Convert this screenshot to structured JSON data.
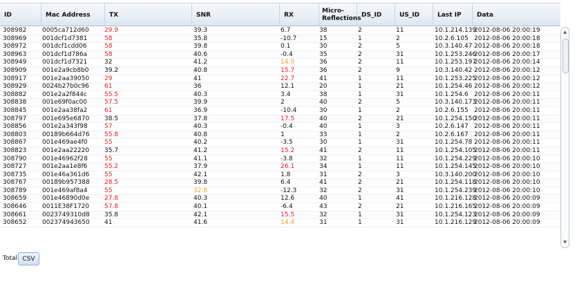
{
  "table": {
    "columns": [
      {
        "key": "id",
        "label": "ID"
      },
      {
        "key": "mac",
        "label": "Mac Address"
      },
      {
        "key": "tx",
        "label": "TX"
      },
      {
        "key": "snr",
        "label": "SNR"
      },
      {
        "key": "rx",
        "label": "RX"
      },
      {
        "key": "micro",
        "label": "Micro-\nReflections"
      },
      {
        "key": "ds",
        "label": "DS_ID"
      },
      {
        "key": "us",
        "label": "US_ID"
      },
      {
        "key": "ip",
        "label": "Last IP"
      },
      {
        "key": "data",
        "label": "Data"
      }
    ],
    "rows": [
      {
        "id": "308982",
        "mac": "0005ca712d60",
        "tx": "29.9",
        "snr": "39.3",
        "rx": "6.7",
        "micro": "38",
        "ds": "2",
        "us": "11",
        "ip": "10.1.214.139",
        "data": "2012-08-06 20:00:19",
        "tx_status": "red",
        "rx_status": ""
      },
      {
        "id": "308969",
        "mac": "001dcf1d7381",
        "tx": "58",
        "snr": "35.8",
        "rx": "-10.7",
        "micro": "15",
        "ds": "1",
        "us": "2",
        "ip": "10.2.6.105",
        "data": "2012-08-06 20:00:18",
        "tx_status": "red",
        "rx_status": ""
      },
      {
        "id": "308972",
        "mac": "001dcf1cdd06",
        "tx": "58",
        "snr": "39.8",
        "rx": "0.1",
        "micro": "30",
        "ds": "2",
        "us": "5",
        "ip": "10.3.140.47",
        "data": "2012-08-06 20:00:18",
        "tx_status": "red",
        "rx_status": ""
      },
      {
        "id": "308963",
        "mac": "001dcf1d786a",
        "tx": "58",
        "snr": "40.6",
        "rx": "-0.4",
        "micro": "35",
        "ds": "2",
        "us": "31",
        "ip": "10.1.253.246",
        "data": "2012-08-06 20:00:17",
        "tx_status": "red",
        "rx_status": ""
      },
      {
        "id": "308949",
        "mac": "001dcf1d7321",
        "tx": "32",
        "snr": "41.2",
        "rx": "14.9",
        "micro": "36",
        "ds": "2",
        "us": "11",
        "ip": "10.1.253.197",
        "data": "2012-08-06 20:00:14",
        "tx_status": "",
        "rx_status": "orange"
      },
      {
        "id": "308909",
        "mac": "001e2a9cb8b0",
        "tx": "39.2",
        "snr": "40.8",
        "rx": "15.7",
        "micro": "36",
        "ds": "2",
        "us": "9",
        "ip": "10.3.140.42",
        "data": "2012-08-06 20:00:12",
        "tx_status": "",
        "rx_status": "red"
      },
      {
        "id": "308917",
        "mac": "001e2aa39050",
        "tx": "29",
        "snr": "41",
        "rx": "22.7",
        "micro": "41",
        "ds": "1",
        "us": "11",
        "ip": "10.1.253.225",
        "data": "2012-08-06 20:00:12",
        "tx_status": "red",
        "rx_status": "red"
      },
      {
        "id": "308929",
        "mac": "0024b27b0c96",
        "tx": "61",
        "snr": "36",
        "rx": "12.1",
        "micro": "20",
        "ds": "1",
        "us": "21",
        "ip": "10.1.254.46",
        "data": "2012-08-06 20:00:12",
        "tx_status": "red",
        "rx_status": ""
      },
      {
        "id": "308882",
        "mac": "001e2a2f844c",
        "tx": "55.5",
        "snr": "40.3",
        "rx": "3.4",
        "micro": "38",
        "ds": "1",
        "us": "31",
        "ip": "10.1.254.6",
        "data": "2012-08-06 20:00:11",
        "tx_status": "red",
        "rx_status": ""
      },
      {
        "id": "308838",
        "mac": "001e69f0ac00",
        "tx": "57.5",
        "snr": "39.9",
        "rx": "2",
        "micro": "40",
        "ds": "2",
        "us": "5",
        "ip": "10.3.140.173",
        "data": "2012-08-06 20:00:11",
        "tx_status": "red",
        "rx_status": ""
      },
      {
        "id": "308845",
        "mac": "001e2aa38fa2",
        "tx": "61",
        "snr": "36.9",
        "rx": "-10.4",
        "micro": "30",
        "ds": "1",
        "us": "2",
        "ip": "10.2.6.155",
        "data": "2012-08-06 20:00:11",
        "tx_status": "red",
        "rx_status": ""
      },
      {
        "id": "308797",
        "mac": "001e695e6870",
        "tx": "38.5",
        "snr": "37.8",
        "rx": "17.5",
        "micro": "40",
        "ds": "2",
        "us": "21",
        "ip": "10.1.254.150",
        "data": "2012-08-06 20:00:11",
        "tx_status": "",
        "rx_status": "red"
      },
      {
        "id": "308856",
        "mac": "001e2a343f98",
        "tx": "57",
        "snr": "40.3",
        "rx": "-0.4",
        "micro": "40",
        "ds": "1",
        "us": "3",
        "ip": "10.2.6.147",
        "data": "2012-08-06 20:00:11",
        "tx_status": "red",
        "rx_status": ""
      },
      {
        "id": "308803",
        "mac": "00189b664d76",
        "tx": "55.8",
        "snr": "40.8",
        "rx": "1",
        "micro": "33",
        "ds": "1",
        "us": "2",
        "ip": "10.2.6.167",
        "data": "2012-08-06 20:00:11",
        "tx_status": "red",
        "rx_status": ""
      },
      {
        "id": "308867",
        "mac": "001e469ae4f0",
        "tx": "55",
        "snr": "40.2",
        "rx": "-3.5",
        "micro": "30",
        "ds": "1",
        "us": "31",
        "ip": "10.1.254.78",
        "data": "2012-08-06 20:00:11",
        "tx_status": "red",
        "rx_status": ""
      },
      {
        "id": "308823",
        "mac": "001e2aa22220",
        "tx": "35.7",
        "snr": "41.2",
        "rx": "15.2",
        "micro": "41",
        "ds": "2",
        "us": "11",
        "ip": "10.1.254.105",
        "data": "2012-08-06 20:00:11",
        "tx_status": "",
        "rx_status": "red"
      },
      {
        "id": "308790",
        "mac": "001e46962f28",
        "tx": "55",
        "snr": "41.1",
        "rx": "-3.8",
        "micro": "32",
        "ds": "1",
        "us": "11",
        "ip": "10.1.254.229",
        "data": "2012-08-06 20:00:10",
        "tx_status": "red",
        "rx_status": ""
      },
      {
        "id": "308727",
        "mac": "001e2aa1e8f6",
        "tx": "55.2",
        "snr": "37.9",
        "rx": "26.1",
        "micro": "34",
        "ds": "1",
        "us": "11",
        "ip": "10.1.254.145",
        "data": "2012-08-06 20:00:10",
        "tx_status": "red",
        "rx_status": "red"
      },
      {
        "id": "308735",
        "mac": "001e46a361d6",
        "tx": "55",
        "snr": "42.1",
        "rx": "1.8",
        "micro": "31",
        "ds": "2",
        "us": "3",
        "ip": "10.3.140.200",
        "data": "2012-08-06 20:00:10",
        "tx_status": "red",
        "rx_status": ""
      },
      {
        "id": "308767",
        "mac": "00189b957388",
        "tx": "28.5",
        "snr": "39.8",
        "rx": "6.4",
        "micro": "41",
        "ds": "2",
        "us": "21",
        "ip": "10.1.254.118",
        "data": "2012-08-06 20:00:10",
        "tx_status": "red",
        "rx_status": ""
      },
      {
        "id": "308789",
        "mac": "001e469af8a4",
        "tx": "55",
        "snr": "32.8",
        "rx": "-12.3",
        "micro": "32",
        "ds": "2",
        "us": "31",
        "ip": "10.1.254.239",
        "data": "2012-08-06 20:00:10",
        "tx_status": "red",
        "rx_status": "",
        "snr_status": "orange"
      },
      {
        "id": "308659",
        "mac": "001e46890d0e",
        "tx": "27.8",
        "snr": "40.3",
        "rx": "12.6",
        "micro": "40",
        "ds": "1",
        "us": "41",
        "ip": "10.1.216.128",
        "data": "2012-08-06 20:00:09",
        "tx_status": "red",
        "rx_status": ""
      },
      {
        "id": "308646",
        "mac": "0011E38F1720",
        "tx": "57.8",
        "snr": "40.1",
        "rx": "-6.4",
        "micro": "43",
        "ds": "2",
        "us": "21",
        "ip": "10.1.216.165",
        "data": "2012-08-06 20:00:09",
        "tx_status": "red",
        "rx_status": ""
      },
      {
        "id": "308661",
        "mac": "0023749310d8",
        "tx": "35.8",
        "snr": "42.1",
        "rx": "15.5",
        "micro": "32",
        "ds": "1",
        "us": "31",
        "ip": "10.1.254.123",
        "data": "2012-08-06 20:00:09",
        "tx_status": "",
        "rx_status": "red"
      },
      {
        "id": "308652",
        "mac": "002374943650",
        "tx": "41",
        "snr": "41.6",
        "rx": "14.4",
        "micro": "31",
        "ds": "1",
        "us": "31",
        "ip": "10.1.216.129",
        "data": "2012-08-06 20:00:09",
        "tx_status": "",
        "rx_status": "orange"
      }
    ]
  },
  "footer": {
    "total_label": "Total:",
    "csv_label": "CSV"
  },
  "colors": {
    "red": "#e02020",
    "orange": "#f0a020"
  }
}
